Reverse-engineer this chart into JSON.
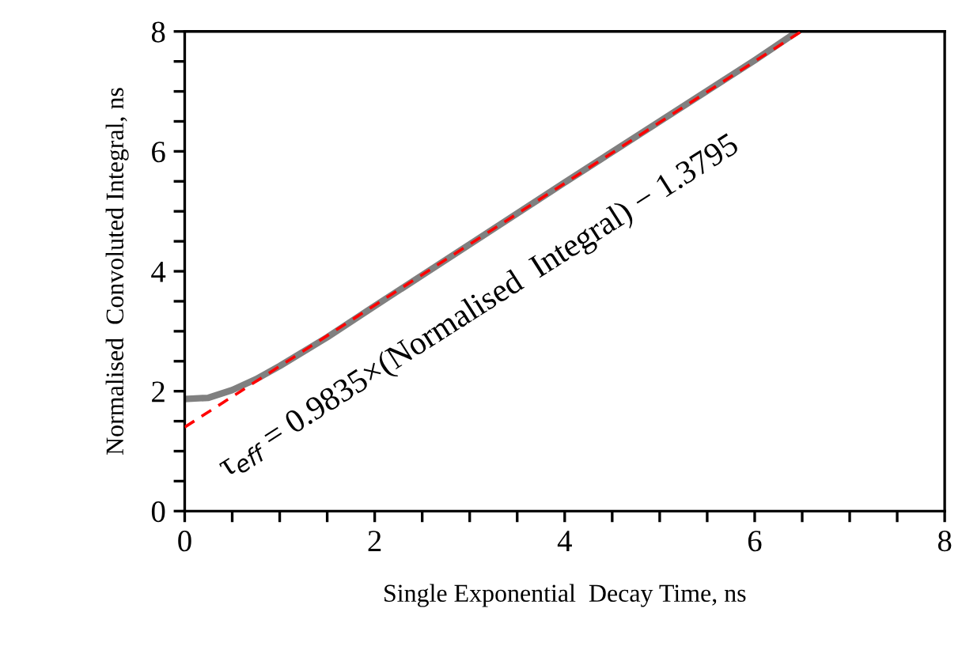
{
  "chart_data": {
    "type": "line",
    "xlabel": "Single Exponential  Decay Time, ns",
    "ylabel": "Normalised  Convoluted Integral, ns",
    "xlim": [
      0,
      8
    ],
    "ylim": [
      0,
      8
    ],
    "xticks": [
      0,
      2,
      4,
      6,
      8
    ],
    "yticks": [
      0,
      2,
      4,
      6,
      8
    ],
    "grid": false,
    "legend": false,
    "series": [
      {
        "color": "#808080",
        "line_style": "solid",
        "x": [
          0,
          0.25,
          0.5,
          0.75,
          1,
          1.5,
          2,
          3,
          4,
          5,
          6,
          6.45
        ],
        "values": [
          1.87,
          1.89,
          2.02,
          2.2,
          2.42,
          2.9,
          3.42,
          4.45,
          5.48,
          6.5,
          7.52,
          8.0
        ]
      },
      {
        "color": "#ff0000",
        "line_style": "dashed",
        "x": [
          0,
          6.49
        ],
        "values": [
          1.4,
          8.0
        ]
      }
    ],
    "annotations": [
      "τ$_{eff}$ = 0.9835×(Normalised  Integral) − 1.3795"
    ]
  }
}
